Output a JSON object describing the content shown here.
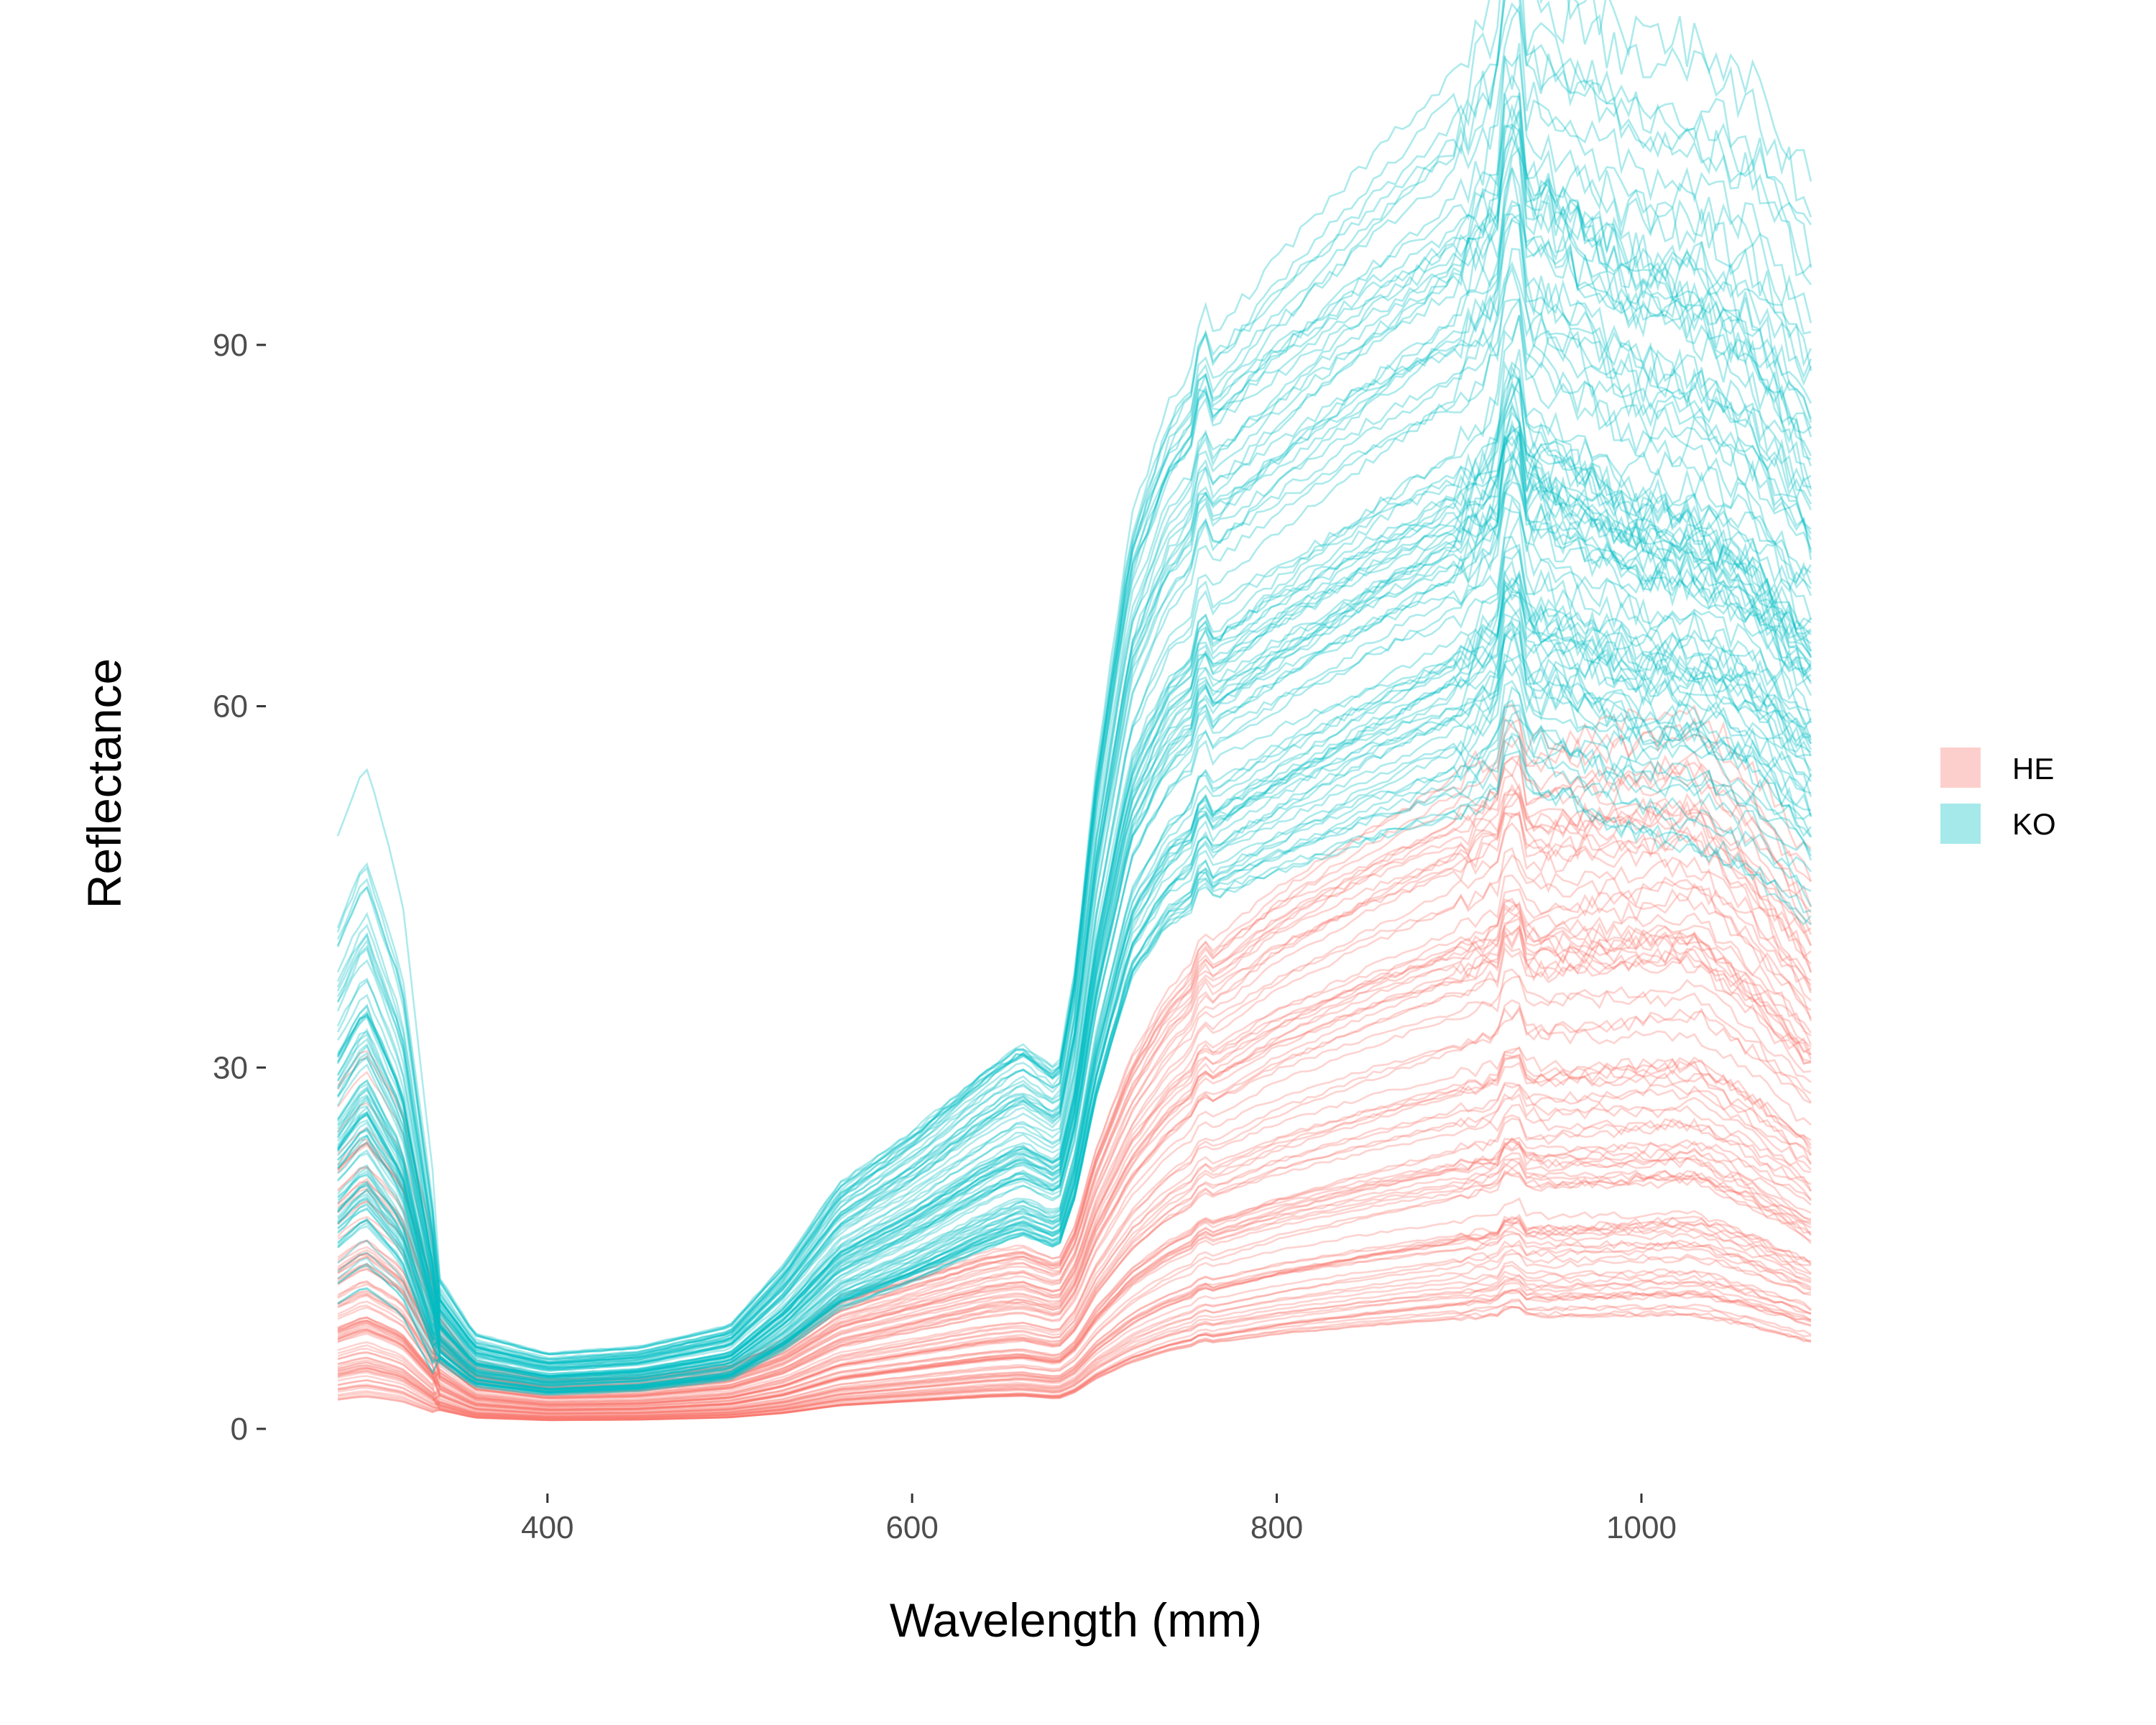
{
  "chart_data": {
    "type": "line",
    "xlabel": "Wavelength (mm)",
    "ylabel": "Reflectance",
    "xlim": [
      285,
      1095
    ],
    "ylim": [
      -4,
      107
    ],
    "xticks": [
      400,
      600,
      800,
      1000
    ],
    "yticks": [
      0,
      30,
      60,
      90
    ],
    "grid": false,
    "legend_position": "right",
    "series": [
      {
        "name": "HE",
        "color": "#F8766D",
        "profile": {
          "x": [
            285,
            300,
            320,
            340,
            360,
            400,
            450,
            500,
            530,
            560,
            600,
            640,
            660,
            680,
            690,
            700,
            720,
            740,
            760,
            800,
            850,
            900,
            930,
            950,
            1000,
            1030,
            1060,
            1095
          ],
          "y": [
            9,
            10,
            8.5,
            4.5,
            2.6,
            2.0,
            2.1,
            2.6,
            3.6,
            5.3,
            6.3,
            7.3,
            7.6,
            7.0,
            8.6,
            11.5,
            15.5,
            18.2,
            20.0,
            22.5,
            24.8,
            26.8,
            28.0,
            27.8,
            28.3,
            28.6,
            26.0,
            22.0
          ]
        },
        "amplitude_range": [
          0.35,
          2.0
        ]
      },
      {
        "name": "KO",
        "color": "#00BFC4",
        "profile": {
          "x": [
            285,
            300,
            320,
            340,
            360,
            400,
            450,
            500,
            530,
            560,
            600,
            640,
            660,
            680,
            690,
            700,
            720,
            740,
            760,
            800,
            850,
            900,
            930,
            950,
            1000,
            1030,
            1060,
            1095
          ],
          "y": [
            22,
            25,
            20,
            8,
            5.0,
            4.0,
            4.4,
            5.6,
            9.0,
            13.5,
            16.5,
            20.0,
            21.5,
            20.0,
            26.0,
            36.0,
            50.0,
            56.0,
            59.0,
            63.0,
            67.5,
            71.5,
            76.0,
            75.0,
            71.0,
            70.5,
            68.0,
            62.0
          ]
        },
        "amplitude_range": [
          0.75,
          1.5
        ]
      }
    ]
  },
  "legend": {
    "items": [
      {
        "label": "HE",
        "color": "#F8766D"
      },
      {
        "label": "KO",
        "color": "#00BFC4"
      }
    ]
  }
}
